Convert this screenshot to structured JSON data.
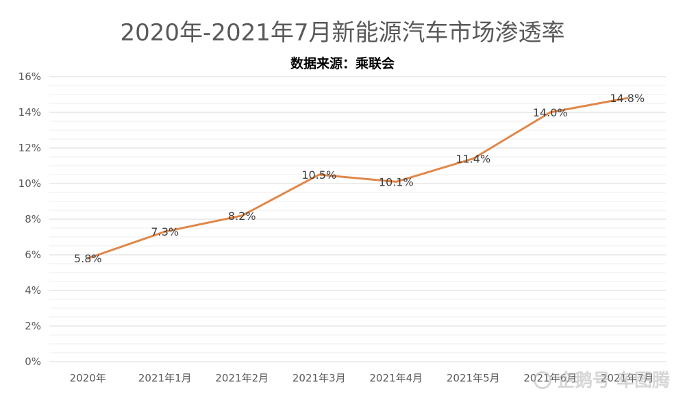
{
  "chart_data": {
    "type": "line",
    "title": "2020年-2021年7月新能源汽车市场渗透率",
    "subtitle": "数据来源：乘联会",
    "categories": [
      "2020年",
      "2021年1月",
      "2021年2月",
      "2021年3月",
      "2021年4月",
      "2021年5月",
      "2021年6月",
      "2021年7月"
    ],
    "series": [
      {
        "values": [
          5.8,
          7.3,
          8.2,
          10.5,
          10.1,
          11.4,
          14.0,
          14.8
        ],
        "labels": [
          "5.8%",
          "7.3%",
          "8.2%",
          "10.5%",
          "10.1%",
          "11.4%",
          "14.0%",
          "14.8%"
        ],
        "color": "#E0874A"
      }
    ],
    "ylim": [
      0,
      16
    ],
    "yticks": [
      "0%",
      "2%",
      "4%",
      "6%",
      "8%",
      "10%",
      "12%",
      "14%",
      "16%"
    ],
    "grid": true,
    "legend": "none"
  },
  "watermark": {
    "icon": "penguin-icon",
    "text": "企鹅号 车图腾"
  }
}
